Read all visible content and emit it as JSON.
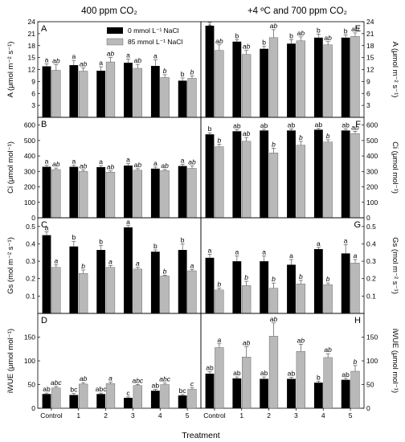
{
  "figure": {
    "header_left": "400 ppm CO₂",
    "header_right": "+4 ºC and 700 ppm CO₂",
    "x_title": "Treatment",
    "legend": [
      {
        "label": "0 mmol L⁻¹ NaCl",
        "color": "#000000"
      },
      {
        "label": "85 mmol L⁻¹ NaCl",
        "color": "#b9b9b9"
      }
    ],
    "colors": {
      "series_a": "#000000",
      "series_b": "#b9b9b9"
    }
  },
  "chart_data": [
    {
      "panel": "A",
      "type": "bar",
      "row": 0,
      "side": "left",
      "ylabel": "A (μmol m⁻² s⁻¹)",
      "ylim": [
        0,
        24
      ],
      "yticks": [
        3,
        6,
        9,
        12,
        15,
        18,
        21,
        24
      ],
      "categories": [
        "Control",
        "1",
        "2",
        "3",
        "4",
        "5"
      ],
      "series": [
        {
          "name": "0 mmol L⁻¹ NaCl",
          "values": [
            12.8,
            13.1,
            11.7,
            13.7,
            12.9,
            9.2
          ],
          "errors": [
            0.6,
            1.2,
            1.0,
            0.9,
            1.5,
            0.7
          ],
          "labels": [
            "a",
            "a",
            "a",
            "a",
            "a",
            "b"
          ]
        },
        {
          "name": "85 mmol L⁻¹ NaCl",
          "values": [
            11.8,
            11.6,
            13.9,
            12.3,
            10.0,
            9.8
          ],
          "errors": [
            1.4,
            0.8,
            1.1,
            1.0,
            0.7,
            0.6
          ],
          "labels": [
            "ab",
            "ab",
            "ab",
            "ab",
            "b",
            "b"
          ]
        }
      ]
    },
    {
      "panel": "B",
      "type": "bar",
      "row": 1,
      "side": "left",
      "ylabel": "Ci (μmol mol⁻¹)",
      "ylim": [
        0,
        650
      ],
      "yticks": [
        0,
        100,
        200,
        300,
        400,
        500,
        600
      ],
      "categories": [
        "Control",
        "1",
        "2",
        "3",
        "4",
        "5"
      ],
      "series": [
        {
          "name": "0 mmol L⁻¹ NaCl",
          "values": [
            330,
            330,
            328,
            338,
            318,
            335
          ],
          "errors": [
            10,
            10,
            10,
            12,
            10,
            12
          ],
          "labels": [
            "a",
            "a",
            "a",
            "a",
            "a",
            "a"
          ]
        },
        {
          "name": "85 mmol L⁻¹ NaCl",
          "values": [
            312,
            300,
            295,
            308,
            305,
            320
          ],
          "errors": [
            10,
            10,
            8,
            10,
            8,
            15
          ],
          "labels": [
            "ab",
            "ab",
            "ab",
            "ab",
            "ab",
            "ab"
          ]
        }
      ]
    },
    {
      "panel": "C",
      "type": "bar",
      "row": 2,
      "side": "left",
      "ylabel": "Gs (mol m⁻² s⁻¹)",
      "ylim": [
        0,
        0.55
      ],
      "yticks": [
        0.1,
        0.2,
        0.3,
        0.4,
        0.5
      ],
      "categories": [
        "Control",
        "1",
        "2",
        "3",
        "4",
        "5"
      ],
      "series": [
        {
          "name": "0 mmol L⁻¹ NaCl",
          "values": [
            0.45,
            0.385,
            0.365,
            0.495,
            0.355,
            0.365
          ],
          "errors": [
            0.02,
            0.03,
            0.025,
            0.01,
            0.01,
            0.035
          ],
          "labels": [
            "a",
            "b",
            "b",
            "a",
            "b",
            "b"
          ]
        },
        {
          "name": "85 mmol L⁻¹ NaCl",
          "values": [
            0.265,
            0.23,
            0.265,
            0.255,
            0.215,
            0.245
          ],
          "errors": [
            0.015,
            0.02,
            0.01,
            0.01,
            0.005,
            0.008
          ],
          "labels": [
            "a",
            "b",
            "a",
            "a",
            "b",
            "a"
          ]
        }
      ]
    },
    {
      "panel": "D",
      "type": "bar",
      "row": 3,
      "side": "left",
      "ylabel": "iWUE (μmol mol⁻¹)",
      "ylim": [
        0,
        200
      ],
      "yticks": [
        0,
        50,
        100,
        150
      ],
      "categories": [
        "Control",
        "1",
        "2",
        "3",
        "4",
        "5"
      ],
      "series": [
        {
          "name": "0 mmol L⁻¹ NaCl",
          "values": [
            30,
            28,
            30,
            22,
            37,
            27
          ],
          "errors": [
            2,
            3,
            2,
            2,
            3,
            2
          ],
          "labels": [
            "ab",
            "bc",
            "abc",
            "c",
            "ab",
            "bc"
          ]
        },
        {
          "name": "85 mmol L⁻¹ NaCl",
          "values": [
            43,
            51,
            52,
            48,
            50,
            40
          ],
          "errors": [
            3,
            3,
            3,
            2,
            3,
            3
          ],
          "labels": [
            "abc",
            "ab",
            "a",
            "abc",
            "abc",
            "c"
          ]
        }
      ]
    },
    {
      "panel": "E",
      "type": "bar",
      "row": 0,
      "side": "right",
      "ylabel": "A (μmol m⁻² s⁻¹)",
      "ylim": [
        0,
        24
      ],
      "yticks": [
        3,
        6,
        9,
        12,
        15,
        18,
        21,
        24
      ],
      "categories": [
        "Control",
        "1",
        "2",
        "3",
        "4",
        "5"
      ],
      "series": [
        {
          "name": "0 mmol L⁻¹ NaCl",
          "values": [
            23,
            19,
            17.2,
            18.5,
            20,
            20
          ],
          "errors": [
            0.8,
            0.5,
            0.6,
            1.0,
            0.9,
            0.7
          ],
          "labels": [
            "a",
            "b",
            "b",
            "b",
            "b",
            "b"
          ]
        },
        {
          "name": "85 mmol L⁻¹ NaCl",
          "values": [
            16.8,
            15.8,
            20,
            19.2,
            18.2,
            20.3
          ],
          "errors": [
            1.4,
            1.0,
            2.0,
            1.0,
            0.8,
            0.9
          ],
          "labels": [
            "ab",
            "ab",
            "ab",
            "ab",
            "ab",
            "ab"
          ]
        }
      ]
    },
    {
      "panel": "F",
      "type": "bar",
      "row": 1,
      "side": "right",
      "ylabel": "Ci (μmol mol⁻¹)",
      "ylim": [
        0,
        650
      ],
      "yticks": [
        0,
        100,
        200,
        300,
        400,
        500,
        600
      ],
      "categories": [
        "Control",
        "1",
        "2",
        "3",
        "4",
        "5"
      ],
      "series": [
        {
          "name": "0 mmol L⁻¹ NaCl",
          "values": [
            540,
            560,
            565,
            565,
            570,
            565
          ],
          "errors": [
            10,
            10,
            8,
            10,
            8,
            10
          ],
          "labels": [
            "b",
            "ab",
            "ab",
            "ab",
            "ab",
            "ab"
          ]
        },
        {
          "name": "85 mmol L⁻¹ NaCl",
          "values": [
            460,
            495,
            420,
            470,
            490,
            545
          ],
          "errors": [
            15,
            25,
            30,
            25,
            15,
            15
          ],
          "labels": [
            "b",
            "ab",
            "b",
            "b",
            "b",
            "ab"
          ]
        }
      ]
    },
    {
      "panel": "G",
      "type": "bar",
      "row": 2,
      "side": "right",
      "ylabel": "Gs (mol m⁻² s⁻¹)",
      "ylim": [
        0,
        0.55
      ],
      "yticks": [
        0.1,
        0.2,
        0.3,
        0.4,
        0.5
      ],
      "categories": [
        "Control",
        "1",
        "2",
        "3",
        "4",
        "5"
      ],
      "series": [
        {
          "name": "0 mmol L⁻¹ NaCl",
          "values": [
            0.32,
            0.3,
            0.3,
            0.28,
            0.37,
            0.345
          ],
          "errors": [
            0.02,
            0.03,
            0.03,
            0.03,
            0.01,
            0.05
          ],
          "labels": [
            "a",
            "a",
            "a",
            "a",
            "a",
            "a"
          ]
        },
        {
          "name": "85 mmol L⁻¹ NaCl",
          "values": [
            0.135,
            0.16,
            0.145,
            0.17,
            0.165,
            0.29
          ],
          "errors": [
            0.01,
            0.025,
            0.03,
            0.02,
            0.01,
            0.02
          ],
          "labels": [
            "b",
            "b",
            "b",
            "b",
            "b",
            "a"
          ]
        }
      ]
    },
    {
      "panel": "H",
      "type": "bar",
      "row": 3,
      "side": "right",
      "ylabel": "iWUE (μmol mol⁻¹)",
      "ylim": [
        0,
        200
      ],
      "yticks": [
        0,
        50,
        100,
        150
      ],
      "categories": [
        "Control",
        "1",
        "2",
        "3",
        "4",
        "5"
      ],
      "series": [
        {
          "name": "0 mmol L⁻¹ NaCl",
          "values": [
            73,
            63,
            62,
            62,
            54,
            60
          ],
          "errors": [
            4,
            3,
            4,
            3,
            3,
            3
          ],
          "labels": [
            "ab",
            "ab",
            "ab",
            "ab",
            "b",
            "ab"
          ]
        },
        {
          "name": "85 mmol L⁻¹ NaCl",
          "values": [
            128,
            108,
            152,
            120,
            107,
            78
          ],
          "errors": [
            8,
            22,
            28,
            15,
            8,
            12
          ],
          "labels": [
            "a",
            "ab",
            "ab",
            "ab",
            "ab",
            "b"
          ]
        }
      ]
    }
  ]
}
